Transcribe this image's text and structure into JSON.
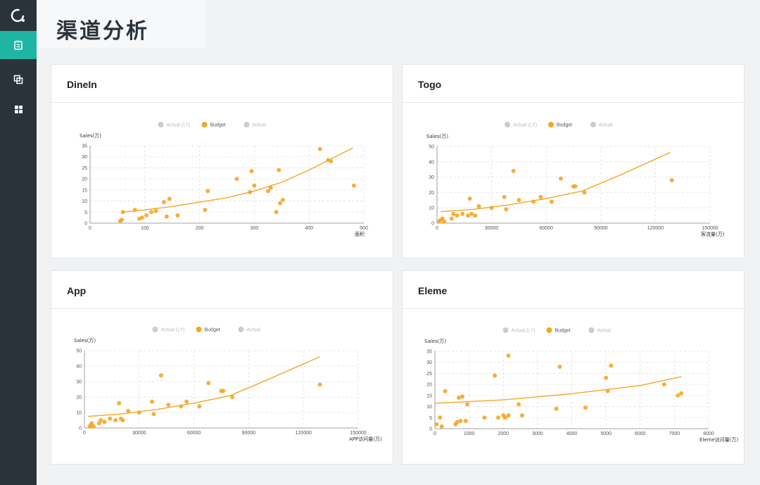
{
  "page": {
    "title": "渠道分析"
  },
  "sidebar": {
    "items": [
      {
        "name": "dashboard-icon"
      },
      {
        "name": "copy-icon"
      },
      {
        "name": "grid-icon"
      }
    ]
  },
  "colors": {
    "accent": "#1fb5a3",
    "sidebar": "#2b333a",
    "budget": "#f5a623",
    "inactive": "#cccccc"
  },
  "legend": [
    "Actual (LY)",
    "Budget",
    "Actual"
  ],
  "chart_data": [
    {
      "type": "scatter",
      "title": "DineIn",
      "ylabel": "Sales(万)",
      "xlabel": "面积",
      "xlim": [
        0,
        500
      ],
      "ylim": [
        0,
        35
      ],
      "xticks": [
        0,
        100,
        200,
        300,
        400,
        500
      ],
      "yticks": [
        0,
        5,
        10,
        15,
        20,
        25,
        30,
        35
      ],
      "points": [
        [
          55,
          1
        ],
        [
          58,
          1.5
        ],
        [
          60,
          5
        ],
        [
          82,
          6
        ],
        [
          90,
          2
        ],
        [
          95,
          2.5
        ],
        [
          103,
          3.5
        ],
        [
          112,
          5
        ],
        [
          120,
          5.5
        ],
        [
          135,
          9.5
        ],
        [
          140,
          3
        ],
        [
          145,
          11
        ],
        [
          160,
          3.5
        ],
        [
          210,
          6
        ],
        [
          215,
          14.5
        ],
        [
          268,
          20
        ],
        [
          292,
          14
        ],
        [
          295,
          23.5
        ],
        [
          300,
          17
        ],
        [
          325,
          14.5
        ],
        [
          330,
          16
        ],
        [
          340,
          5
        ],
        [
          345,
          24
        ],
        [
          347,
          9
        ],
        [
          352,
          10.5
        ],
        [
          420,
          33.5
        ],
        [
          435,
          28.5
        ],
        [
          440,
          28
        ],
        [
          482,
          17
        ]
      ],
      "trend": [
        [
          60,
          5
        ],
        [
          100,
          6
        ],
        [
          150,
          7.5
        ],
        [
          200,
          9.5
        ],
        [
          250,
          11.5
        ],
        [
          300,
          14.5
        ],
        [
          350,
          18.5
        ],
        [
          400,
          24
        ],
        [
          440,
          29
        ],
        [
          480,
          34
        ]
      ]
    },
    {
      "type": "scatter",
      "title": "Togo",
      "ylabel": "Sales(万)",
      "xlabel": "客流量(万)",
      "xlim": [
        0,
        150000
      ],
      "ylim": [
        0,
        50
      ],
      "xticks": [
        0,
        30000,
        60000,
        90000,
        120000,
        150000
      ],
      "yticks": [
        0,
        10,
        20,
        30,
        40,
        50
      ],
      "points": [
        [
          1000,
          1
        ],
        [
          2000,
          2
        ],
        [
          3000,
          3
        ],
        [
          4000,
          1
        ],
        [
          8000,
          3
        ],
        [
          9000,
          6
        ],
        [
          11000,
          5
        ],
        [
          14000,
          6
        ],
        [
          17000,
          5
        ],
        [
          18000,
          16
        ],
        [
          19000,
          6
        ],
        [
          21000,
          5
        ],
        [
          23000,
          11
        ],
        [
          30000,
          10
        ],
        [
          37000,
          17
        ],
        [
          38000,
          9
        ],
        [
          42000,
          34
        ],
        [
          45000,
          15
        ],
        [
          53000,
          14
        ],
        [
          57000,
          17
        ],
        [
          63000,
          14
        ],
        [
          68000,
          29
        ],
        [
          75000,
          24
        ],
        [
          76000,
          24
        ],
        [
          81000,
          20
        ],
        [
          129000,
          28
        ]
      ],
      "trend": [
        [
          2000,
          7.5
        ],
        [
          20000,
          9
        ],
        [
          40000,
          12
        ],
        [
          60000,
          16
        ],
        [
          80000,
          21
        ],
        [
          100000,
          31
        ],
        [
          128000,
          46
        ]
      ]
    },
    {
      "type": "scatter",
      "title": "App",
      "ylabel": "Sales(万)",
      "xlabel": "APP访问量(万)",
      "xlim": [
        0,
        150000
      ],
      "ylim": [
        0,
        50
      ],
      "xticks": [
        0,
        30000,
        60000,
        90000,
        120000,
        150000
      ],
      "yticks": [
        0,
        10,
        20,
        30,
        40,
        50
      ],
      "points": [
        [
          3000,
          1
        ],
        [
          3500,
          2
        ],
        [
          4000,
          3
        ],
        [
          5000,
          1
        ],
        [
          8000,
          3
        ],
        [
          9000,
          5
        ],
        [
          11000,
          4
        ],
        [
          14000,
          6
        ],
        [
          17000,
          5
        ],
        [
          19000,
          16
        ],
        [
          20000,
          6
        ],
        [
          21000,
          5
        ],
        [
          24000,
          11
        ],
        [
          30000,
          10
        ],
        [
          37000,
          17
        ],
        [
          38000,
          9
        ],
        [
          42000,
          34
        ],
        [
          46000,
          15
        ],
        [
          53000,
          14
        ],
        [
          56000,
          17
        ],
        [
          63000,
          14
        ],
        [
          68000,
          29
        ],
        [
          75000,
          24
        ],
        [
          76000,
          24
        ],
        [
          81000,
          20
        ],
        [
          129000,
          28
        ]
      ],
      "trend": [
        [
          2000,
          7.5
        ],
        [
          20000,
          9
        ],
        [
          40000,
          12
        ],
        [
          60000,
          16
        ],
        [
          80000,
          21
        ],
        [
          100000,
          31
        ],
        [
          129000,
          46
        ]
      ]
    },
    {
      "type": "scatter",
      "title": "Eleme",
      "ylabel": "Sales(万)",
      "xlabel": "Eleme访问量(万)",
      "xlim": [
        0,
        8000
      ],
      "ylim": [
        0,
        35
      ],
      "xticks": [
        0,
        1000,
        2000,
        3000,
        4000,
        5000,
        6000,
        7000,
        8000
      ],
      "yticks": [
        0,
        5,
        10,
        15,
        20,
        25,
        30,
        35
      ],
      "points": [
        [
          50,
          2
        ],
        [
          150,
          5
        ],
        [
          200,
          1
        ],
        [
          300,
          17
        ],
        [
          600,
          2
        ],
        [
          650,
          3
        ],
        [
          700,
          14
        ],
        [
          750,
          3.5
        ],
        [
          800,
          14.5
        ],
        [
          900,
          3.5
        ],
        [
          950,
          11
        ],
        [
          1450,
          5
        ],
        [
          1750,
          24
        ],
        [
          1850,
          5
        ],
        [
          2000,
          6
        ],
        [
          2050,
          5
        ],
        [
          2150,
          6
        ],
        [
          2150,
          33
        ],
        [
          2450,
          11
        ],
        [
          2550,
          6
        ],
        [
          3550,
          9
        ],
        [
          3650,
          28
        ],
        [
          4400,
          9.5
        ],
        [
          5000,
          23
        ],
        [
          5050,
          17
        ],
        [
          5150,
          28.5
        ],
        [
          6700,
          20
        ],
        [
          7100,
          15
        ],
        [
          7200,
          16
        ]
      ],
      "trend": [
        [
          0,
          11.5
        ],
        [
          2000,
          13
        ],
        [
          4000,
          15.8
        ],
        [
          6000,
          19.5
        ],
        [
          7200,
          23.5
        ]
      ]
    }
  ]
}
